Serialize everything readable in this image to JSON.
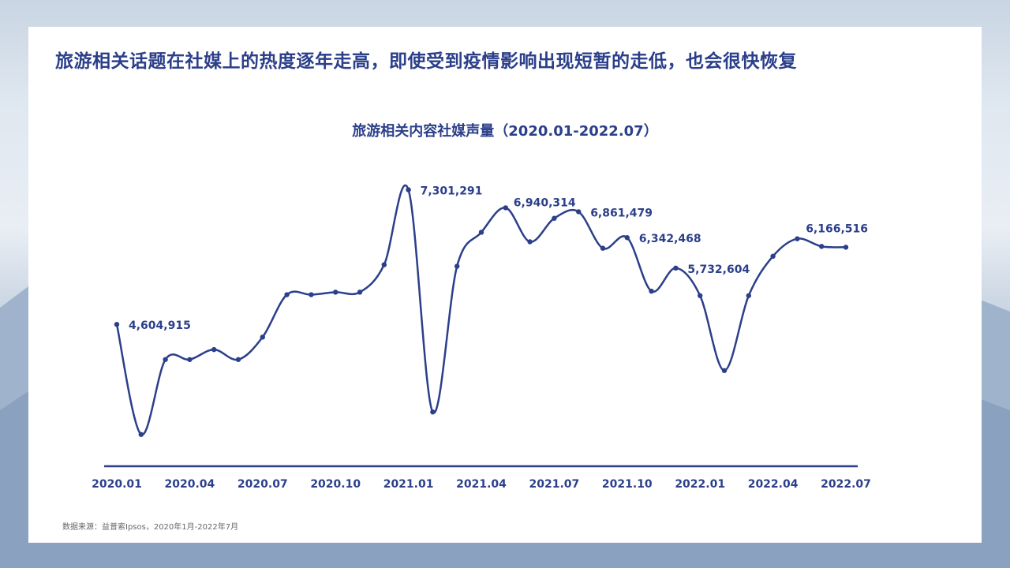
{
  "headline": "旅游相关话题在社媒上的热度逐年走高，即使受到疫情影响出现短暂的走低，也会很快恢复",
  "source": "数据来源：益普索Ipsos，2020年1月-2022年7月",
  "colors": {
    "line": "#2b3f8a",
    "text": "#2b3f8a"
  },
  "chart_data": {
    "type": "line",
    "title": "旅游相关内容社媒声量（2020.01-2022.07）",
    "xlabel": "",
    "ylabel": "",
    "ylim": [
      2000000,
      7500000
    ],
    "grid": false,
    "legend": "none",
    "smooth": true,
    "x": [
      "2020.01",
      "2020.02",
      "2020.03",
      "2020.04",
      "2020.05",
      "2020.06",
      "2020.07",
      "2020.08",
      "2020.09",
      "2020.10",
      "2020.11",
      "2020.12",
      "2021.01",
      "2021.02",
      "2021.03",
      "2021.04",
      "2021.05",
      "2021.06",
      "2021.07",
      "2021.08",
      "2021.09",
      "2021.10",
      "2021.11",
      "2021.12",
      "2022.01",
      "2022.02",
      "2022.03",
      "2022.04",
      "2022.05",
      "2022.06",
      "2022.07"
    ],
    "tick_labels": [
      "2020.01",
      "2020.04",
      "2020.07",
      "2020.10",
      "2021.01",
      "2021.04",
      "2021.07",
      "2021.10",
      "2022.01",
      "2022.04",
      "2022.07"
    ],
    "series": [
      {
        "values": [
          4604915,
          2400000,
          3900000,
          3900000,
          4100000,
          3900000,
          4350000,
          5200000,
          5200000,
          5250000,
          5250000,
          5800000,
          7301291,
          2850000,
          5770000,
          6450000,
          6940314,
          6260000,
          6730000,
          6861479,
          6130000,
          6342468,
          5270000,
          5732604,
          5180000,
          3680000,
          5180000,
          5970000,
          6320000,
          6166516,
          6150000
        ]
      }
    ],
    "data_labels": [
      {
        "index": 0,
        "text": "4,604,915"
      },
      {
        "index": 12,
        "text": "7,301,291"
      },
      {
        "index": 16,
        "text": "6,940,314"
      },
      {
        "index": 19,
        "text": "6,861,479"
      },
      {
        "index": 21,
        "text": "6,342,468"
      },
      {
        "index": 23,
        "text": "5,732,604"
      },
      {
        "index": 29,
        "text": "6,166,516"
      }
    ]
  }
}
